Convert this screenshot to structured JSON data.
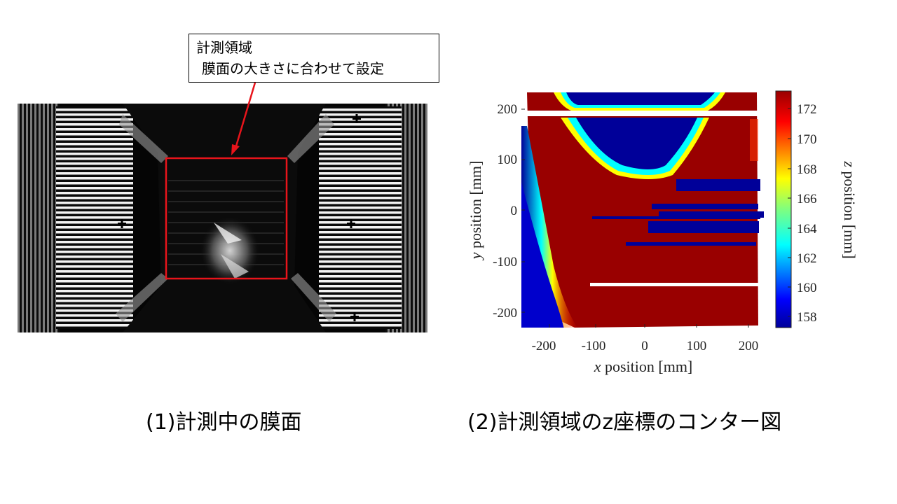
{
  "callout": {
    "line1": "計測領域",
    "line2": "膜面の大きさに合わせて設定"
  },
  "captions": {
    "left": "(1)計測中の膜面",
    "right": "(2)計測領域のz座標のコンター図"
  },
  "colors": {
    "region_box": "#e8141b",
    "arrow": "#e8141b",
    "contour_high": "#990000",
    "contour_low": "#000099"
  },
  "chart_data": {
    "type": "heatmap",
    "title": "",
    "xlabel": {
      "var": "x",
      "text": " position [mm]"
    },
    "ylabel": {
      "var": "y",
      "text": " position [mm]"
    },
    "colorbar_label": {
      "var": "z",
      "text": " position [mm]"
    },
    "x_ticks": [
      "-200",
      "-100",
      "0",
      "100",
      "200"
    ],
    "y_ticks": [
      "200",
      "100",
      "0",
      "-100",
      "-200"
    ],
    "colorbar_ticks": [
      "172",
      "170",
      "168",
      "166",
      "164",
      "162",
      "160",
      "158"
    ],
    "xlim": [
      -240,
      240
    ],
    "ylim": [
      -230,
      230
    ],
    "zlim": [
      157,
      173
    ],
    "colormap": "jet",
    "grid": false
  }
}
